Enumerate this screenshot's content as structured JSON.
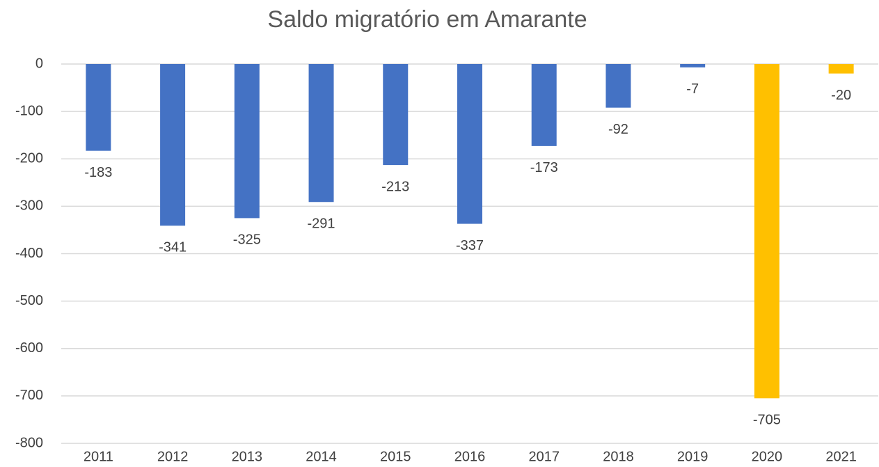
{
  "chart_data": {
    "type": "bar",
    "title": "Saldo migratório em Amarante",
    "categories": [
      "2011",
      "2012",
      "2013",
      "2014",
      "2015",
      "2016",
      "2017",
      "2018",
      "2019",
      "2020",
      "2021"
    ],
    "values": [
      -183,
      -341,
      -325,
      -291,
      -213,
      -337,
      -173,
      -92,
      -7,
      -705,
      -20
    ],
    "colors": [
      "#4472c4",
      "#4472c4",
      "#4472c4",
      "#4472c4",
      "#4472c4",
      "#4472c4",
      "#4472c4",
      "#4472c4",
      "#4472c4",
      "#ffc000",
      "#ffc000"
    ],
    "ylim": [
      -800,
      0
    ],
    "yticks": [
      0,
      -100,
      -200,
      -300,
      -400,
      -500,
      -600,
      -700,
      -800
    ],
    "grid": true
  }
}
